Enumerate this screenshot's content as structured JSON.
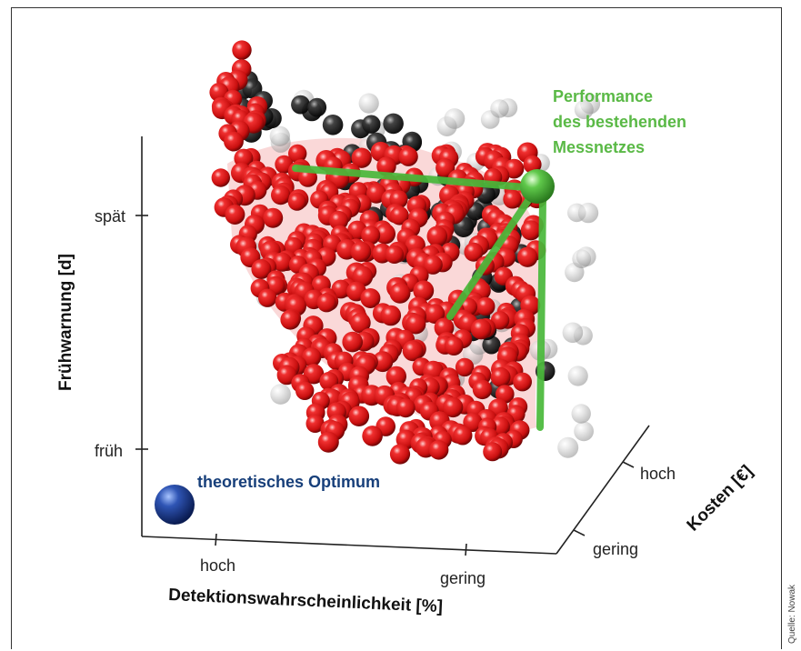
{
  "chart_data": {
    "type": "scatter",
    "title": "",
    "xlabel": "Detektionswahrscheinlichkeit [%]",
    "ylabel": "Frühwarnung [d]",
    "zlabel": "Kosten [€]",
    "x_ticks": [
      "hoch",
      "gering"
    ],
    "y_ticks": [
      "spät",
      "früh"
    ],
    "z_ticks": [
      "hoch",
      "gering"
    ],
    "annotations": {
      "current": "Performance des bestehenden Messnetzes",
      "current_lines": [
        "Performance",
        "des bestehenden",
        "Messnetzes"
      ],
      "optimum": "theoretisches Optimum"
    },
    "series": [
      {
        "role": "pareto",
        "color": "#d81818"
      },
      {
        "role": "dominated",
        "color": "#1a1a1a"
      },
      {
        "role": "background",
        "color": "#c8c8c8"
      }
    ],
    "colors": {
      "current": "#5ab946",
      "optimum": "#1a3f8f",
      "label_blue": "#173f7a",
      "label_green": "#5ab946"
    }
  },
  "source_credit": "Quelle: Nowak"
}
